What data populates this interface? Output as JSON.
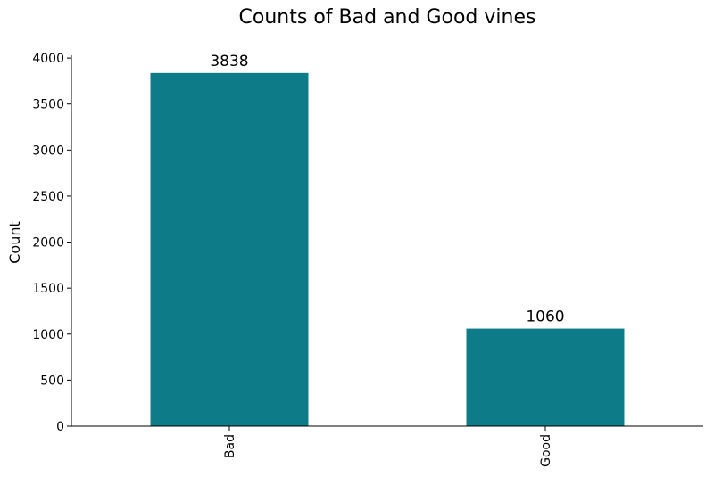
{
  "chart_data": {
    "type": "bar",
    "title": "Counts of Bad and Good vines",
    "xlabel": "",
    "ylabel": "Count",
    "categories": [
      "Bad",
      "Good"
    ],
    "values": [
      3838,
      1060
    ],
    "data_labels": [
      "3838",
      "1060"
    ],
    "ylim": [
      0,
      4030
    ],
    "yticks": [
      0,
      500,
      1000,
      1500,
      2000,
      2500,
      3000,
      3500,
      4000
    ],
    "ytick_labels": [
      "0",
      "500",
      "1000",
      "1500",
      "2000",
      "2500",
      "3000",
      "3500",
      "4000"
    ],
    "xtick_rotation": "vertical",
    "bar_color": "#0d7c88",
    "grid": false,
    "legend": "none",
    "spines": "left-bottom"
  }
}
